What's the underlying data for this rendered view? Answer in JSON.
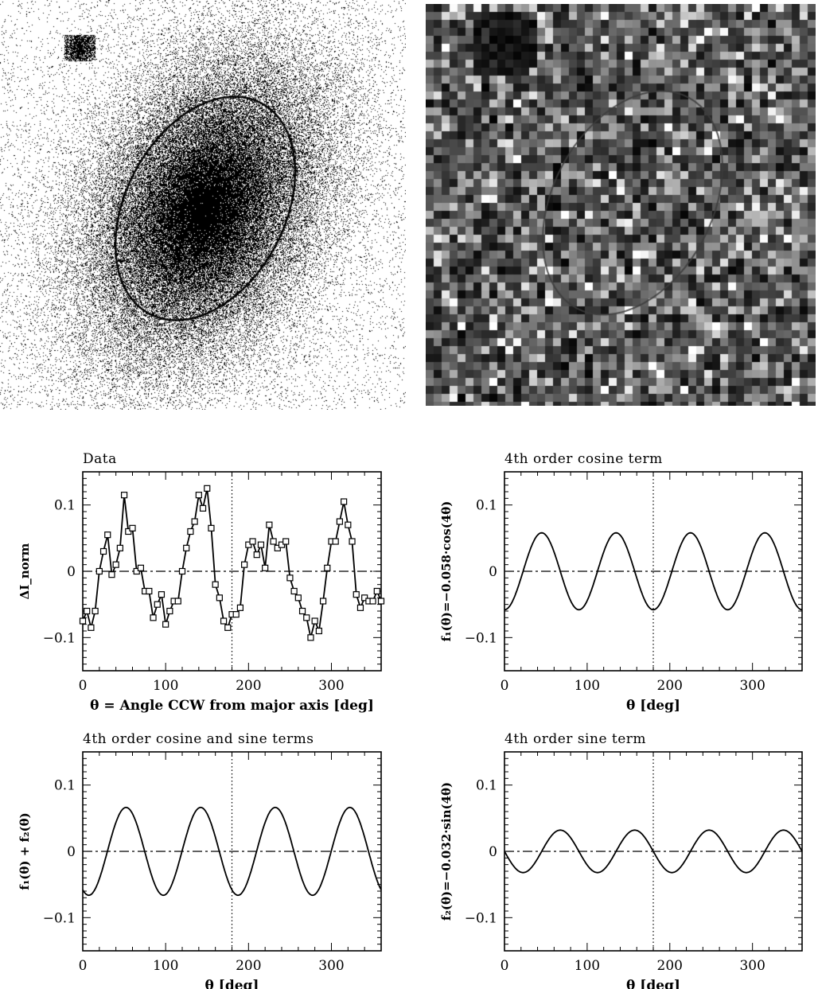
{
  "images": [
    {
      "name": "galaxy-image",
      "description_hint": "grayscale elliptical galaxy with fitted ellipse contour"
    },
    {
      "name": "residual-image",
      "description_hint": "pixelated residual map with faint ellipse contour"
    }
  ],
  "colors": {
    "ink": "#000000",
    "paper": "#ffffff"
  },
  "chart_data": [
    {
      "type": "line",
      "title": "Data",
      "xlabel": "θ = Angle CCW from major axis [deg]",
      "ylabel": "ΔI_norm",
      "xlim": [
        0,
        360
      ],
      "ylim": [
        -0.15,
        0.15
      ],
      "xticks": [
        0,
        100,
        200,
        300
      ],
      "yticks": [
        -0.1,
        0,
        0.1
      ],
      "ytick_labels": [
        "-0.1",
        "0",
        "0.1"
      ],
      "markers": "open-square",
      "reference_lines": {
        "horizontal_dashdot_at": 0,
        "vertical_dotted_at": 180
      },
      "series": [
        {
          "x": [
            0,
            5,
            10,
            15,
            20,
            25,
            30,
            35,
            40,
            45,
            50,
            55,
            60,
            65,
            70,
            75,
            80,
            85,
            90,
            95,
            100,
            105,
            110,
            115,
            120,
            125,
            130,
            135,
            140,
            145,
            150,
            155,
            160,
            165,
            170,
            175,
            180,
            185,
            190,
            195,
            200,
            205,
            210,
            215,
            220,
            225,
            230,
            235,
            240,
            245,
            250,
            255,
            260,
            265,
            270,
            275,
            280,
            285,
            290,
            295,
            300,
            305,
            310,
            315,
            320,
            325,
            330,
            335,
            340,
            345,
            350,
            355,
            360
          ],
          "values": [
            -0.075,
            -0.06,
            -0.085,
            -0.06,
            0.0,
            0.03,
            0.055,
            -0.005,
            0.01,
            0.035,
            0.115,
            0.06,
            0.065,
            0.0,
            0.005,
            -0.03,
            -0.03,
            -0.07,
            -0.05,
            -0.035,
            -0.08,
            -0.06,
            -0.045,
            -0.045,
            0.0,
            0.035,
            0.06,
            0.075,
            0.115,
            0.095,
            0.125,
            0.065,
            -0.02,
            -0.04,
            -0.075,
            -0.085,
            -0.065,
            -0.065,
            -0.055,
            0.01,
            0.04,
            0.045,
            0.025,
            0.04,
            0.005,
            0.07,
            0.045,
            0.035,
            0.04,
            0.045,
            -0.01,
            -0.03,
            -0.04,
            -0.06,
            -0.07,
            -0.1,
            -0.075,
            -0.09,
            -0.045,
            0.005,
            0.045,
            0.045,
            0.075,
            0.105,
            0.07,
            0.045,
            -0.035,
            -0.055,
            -0.04,
            -0.045,
            -0.045,
            -0.03,
            -0.045
          ]
        }
      ]
    },
    {
      "type": "line",
      "title": "4th order cosine term",
      "xlabel": "θ [deg]",
      "ylabel": "f₁(θ)=−0.058·cos(4θ)",
      "xlim": [
        0,
        360
      ],
      "ylim": [
        -0.15,
        0.15
      ],
      "xticks": [
        0,
        100,
        200,
        300
      ],
      "yticks": [
        -0.1,
        0,
        0.1
      ],
      "ytick_labels": [
        "-0.1",
        "0",
        "0.1"
      ],
      "reference_lines": {
        "horizontal_dashdot_at": 0,
        "vertical_dotted_at": 180
      },
      "series": [
        {
          "function": "cos4",
          "amplitude": -0.058
        }
      ]
    },
    {
      "type": "line",
      "title": "4th order cosine and sine terms",
      "xlabel": "θ [deg]",
      "ylabel": "f₁(θ) + f₂(θ)",
      "xlim": [
        0,
        360
      ],
      "ylim": [
        -0.15,
        0.15
      ],
      "xticks": [
        0,
        100,
        200,
        300
      ],
      "yticks": [
        -0.1,
        0,
        0.1
      ],
      "ytick_labels": [
        "-0.1",
        "0",
        "0.1"
      ],
      "reference_lines": {
        "horizontal_dashdot_at": 0,
        "vertical_dotted_at": 180
      },
      "series": [
        {
          "function": "cos4_plus_sin4",
          "cos_amplitude": -0.058,
          "sin_amplitude": -0.032
        }
      ]
    },
    {
      "type": "line",
      "title": "4th order sine term",
      "xlabel": "θ [deg]",
      "ylabel": "f₂(θ)=−0.032·sin(4θ)",
      "xlim": [
        0,
        360
      ],
      "ylim": [
        -0.15,
        0.15
      ],
      "xticks": [
        0,
        100,
        200,
        300
      ],
      "yticks": [
        -0.1,
        0,
        0.1
      ],
      "ytick_labels": [
        "-0.1",
        "0",
        "0.1"
      ],
      "reference_lines": {
        "horizontal_dashdot_at": 0,
        "vertical_dotted_at": 180
      },
      "series": [
        {
          "function": "sin4",
          "amplitude": -0.032
        }
      ]
    }
  ]
}
